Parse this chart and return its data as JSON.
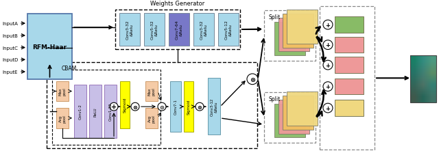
{
  "bg_color": "#ffffff",
  "inputs": [
    "InputA",
    "InputB",
    "InputC",
    "InputD",
    "InputE"
  ],
  "wg_label": "Weights Generator",
  "wg_conv_labels": [
    "Conv3-32\n&Relu",
    "Conv5-32\n&Relu",
    "Conv7-64\n&Relu",
    "Conv3-32\n&Relu",
    "Conv5-12\n&Relu"
  ],
  "wg_conv_colors": [
    "#a8d8ea",
    "#a8d8ea",
    "#7878c8",
    "#a8d8ea",
    "#a8d8ea"
  ],
  "cbam_label": "CBAM",
  "pool_color": "#f5cba7",
  "ch_conv_color": "#c8bfe7",
  "sig_color": "#ffff00",
  "spa_conv_color": "#a8d8ea",
  "cbam_out_color": "#a8d8ea",
  "split_up_colors": [
    "#88bb66",
    "#ee9999",
    "#f0c060",
    "#f0d880"
  ],
  "split_lo_colors": [
    "#88bb66",
    "#ee9999",
    "#f0c060",
    "#f0d880"
  ],
  "out_colors": [
    "#88bb66",
    "#ee9999",
    "#ee9999",
    "#ee9999",
    "#f0d880"
  ],
  "rfm_color": "#a8d8ea",
  "circle_color": "#ffffff"
}
